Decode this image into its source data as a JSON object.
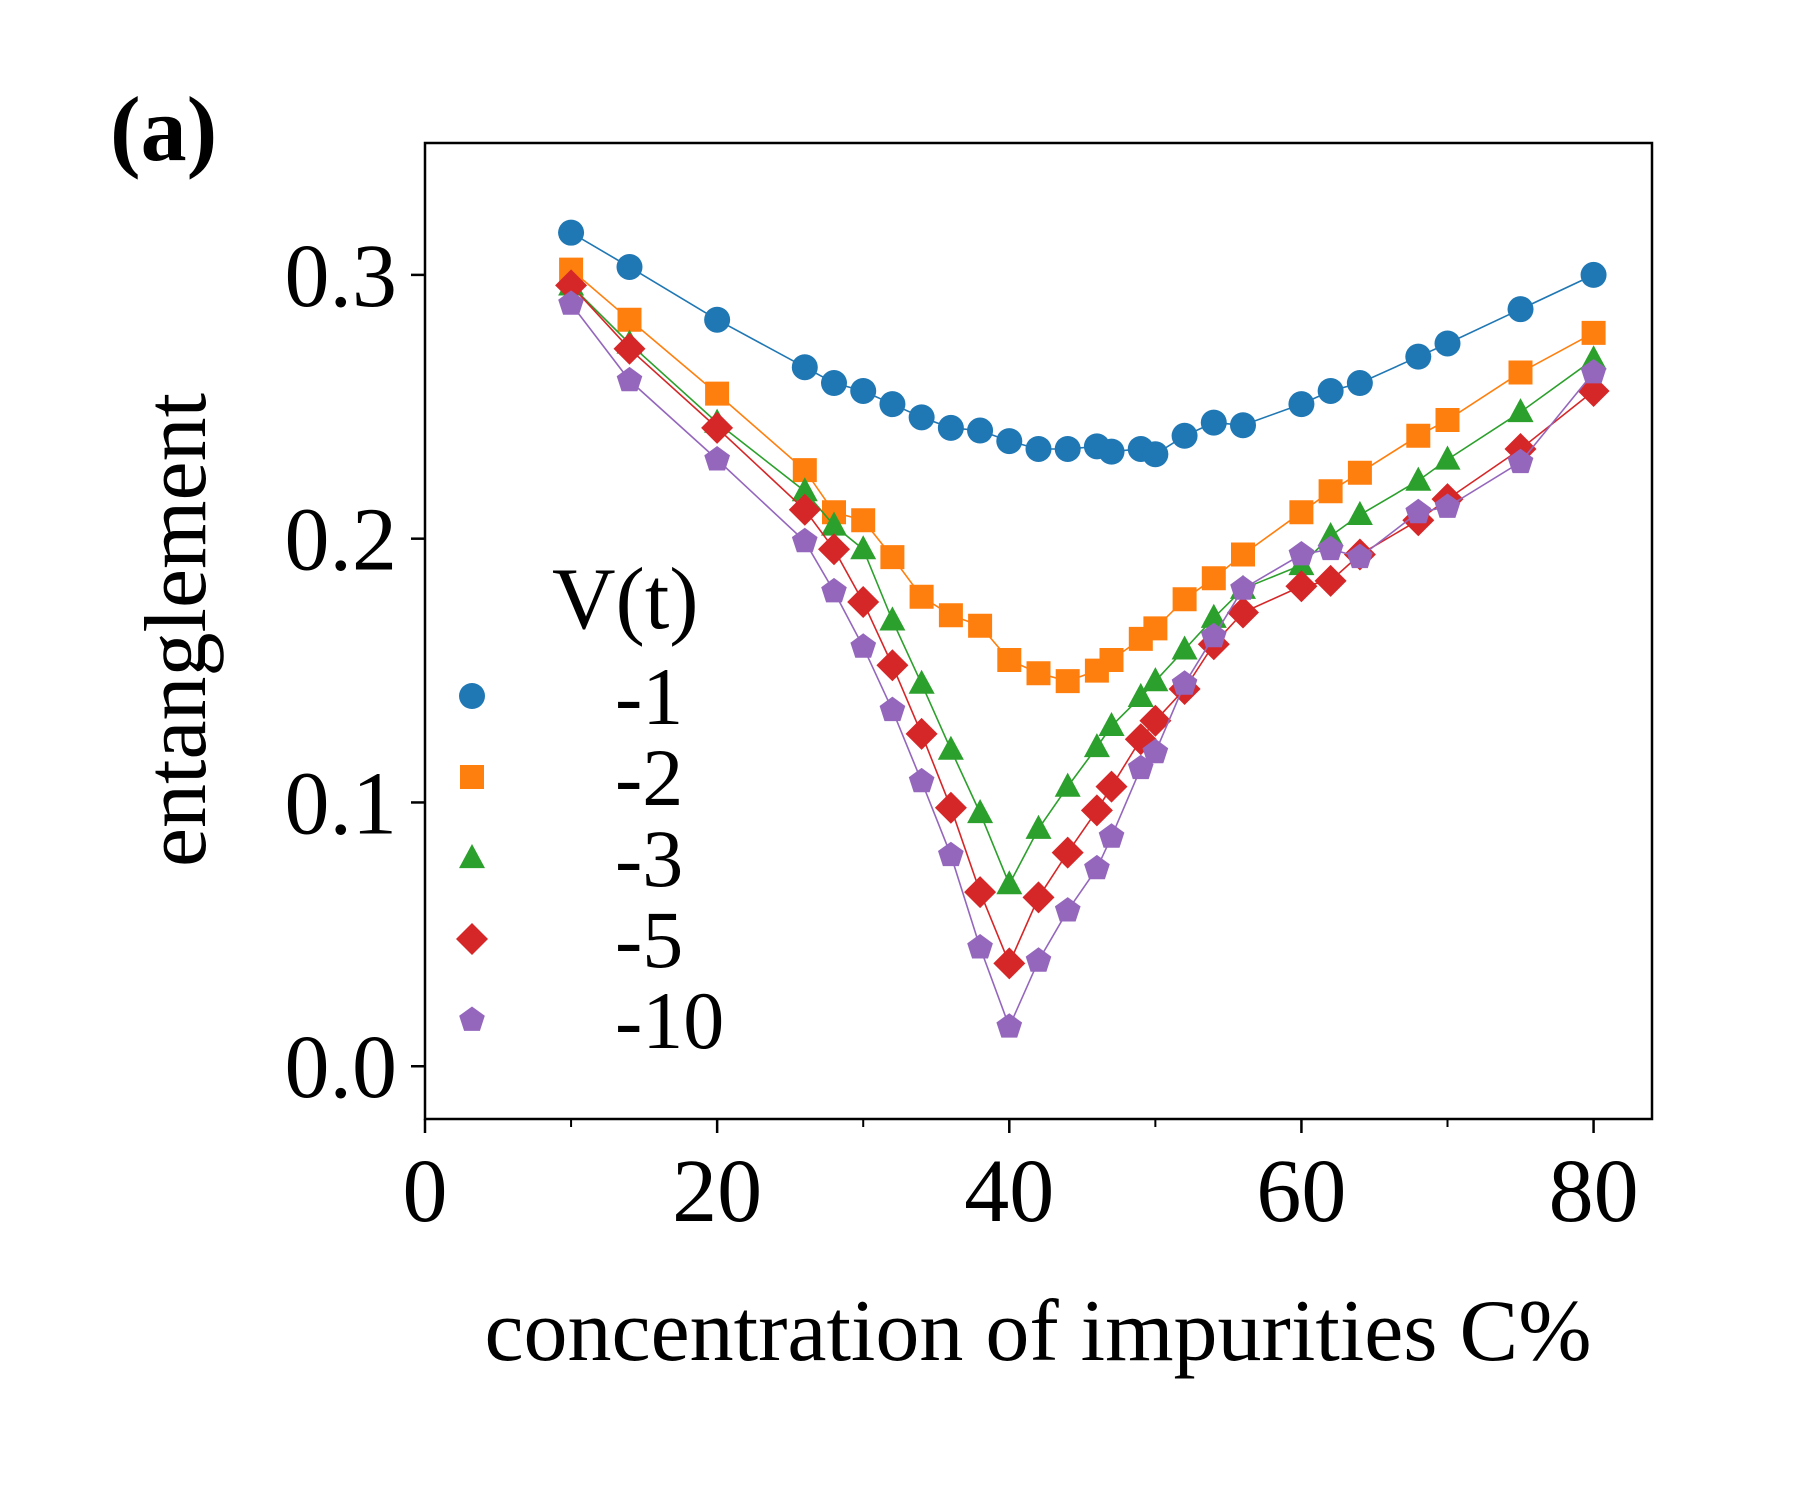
{
  "panel_label": "(a)",
  "chart_data": {
    "type": "line",
    "title": "",
    "xlabel": "concentration of impurities C%",
    "ylabel": "entanglement",
    "xlim": [
      0,
      84
    ],
    "ylim": [
      -0.02,
      0.35
    ],
    "xticks": [
      0,
      20,
      40,
      60,
      80
    ],
    "xtick_labels": [
      "0",
      "20",
      "40",
      "60",
      "80"
    ],
    "yticks": [
      0.0,
      0.1,
      0.2,
      0.3
    ],
    "ytick_labels": [
      "0.0",
      "0.1",
      "0.2",
      "0.3"
    ],
    "minor_xticks": [
      10,
      30,
      50,
      70
    ],
    "grid": false,
    "legend": {
      "title": "V(t)",
      "location": "lower-left"
    },
    "series": [
      {
        "name": "-1",
        "marker": "circle",
        "color": "#1f77b4",
        "x": [
          10,
          14,
          20,
          26,
          28,
          30,
          32,
          34,
          36,
          38,
          40,
          42,
          44,
          46,
          47,
          49,
          50,
          52,
          54,
          56,
          60,
          62,
          64,
          68,
          70,
          75,
          80
        ],
        "y": [
          0.316,
          0.303,
          0.283,
          0.265,
          0.259,
          0.256,
          0.251,
          0.246,
          0.242,
          0.241,
          0.237,
          0.234,
          0.234,
          0.235,
          0.233,
          0.234,
          0.232,
          0.239,
          0.244,
          0.243,
          0.251,
          0.256,
          0.259,
          0.269,
          0.274,
          0.287,
          0.3
        ]
      },
      {
        "name": "-2",
        "marker": "square",
        "color": "#ff7f0e",
        "x": [
          10,
          14,
          20,
          26,
          28,
          30,
          32,
          34,
          36,
          38,
          40,
          42,
          44,
          46,
          47,
          49,
          50,
          52,
          54,
          56,
          60,
          62,
          64,
          68,
          70,
          75,
          80
        ],
        "y": [
          0.302,
          0.283,
          0.255,
          0.226,
          0.21,
          0.207,
          0.193,
          0.178,
          0.171,
          0.167,
          0.154,
          0.149,
          0.146,
          0.15,
          0.154,
          0.162,
          0.166,
          0.177,
          0.185,
          0.194,
          0.21,
          0.218,
          0.225,
          0.239,
          0.245,
          0.263,
          0.278
        ]
      },
      {
        "name": "-3",
        "marker": "triangle",
        "color": "#2ca02c",
        "x": [
          10,
          14,
          20,
          26,
          28,
          30,
          32,
          34,
          36,
          38,
          40,
          42,
          44,
          46,
          47,
          49,
          50,
          52,
          54,
          56,
          60,
          62,
          64,
          68,
          70,
          75,
          80
        ],
        "y": [
          0.296,
          0.274,
          0.244,
          0.218,
          0.205,
          0.196,
          0.169,
          0.145,
          0.12,
          0.096,
          0.069,
          0.09,
          0.106,
          0.121,
          0.129,
          0.14,
          0.146,
          0.158,
          0.17,
          0.181,
          0.19,
          0.201,
          0.209,
          0.222,
          0.23,
          0.248,
          0.268
        ]
      },
      {
        "name": "-5",
        "marker": "diamond",
        "color": "#d62728",
        "x": [
          10,
          14,
          20,
          26,
          28,
          30,
          32,
          34,
          36,
          38,
          40,
          42,
          44,
          46,
          47,
          49,
          50,
          52,
          54,
          56,
          60,
          62,
          64,
          68,
          70,
          75,
          80
        ],
        "y": [
          0.296,
          0.272,
          0.242,
          0.211,
          0.196,
          0.176,
          0.152,
          0.126,
          0.098,
          0.066,
          0.039,
          0.064,
          0.081,
          0.097,
          0.106,
          0.124,
          0.131,
          0.143,
          0.16,
          0.172,
          0.182,
          0.184,
          0.194,
          0.207,
          0.215,
          0.234,
          0.256
        ]
      },
      {
        "name": "-10",
        "marker": "pentagon",
        "color": "#9467bd",
        "x": [
          10,
          14,
          20,
          26,
          28,
          30,
          32,
          34,
          36,
          38,
          40,
          42,
          44,
          46,
          47,
          49,
          50,
          52,
          54,
          56,
          60,
          62,
          64,
          68,
          70,
          75,
          80
        ],
        "y": [
          0.289,
          0.26,
          0.23,
          0.199,
          0.18,
          0.159,
          0.135,
          0.108,
          0.08,
          0.045,
          0.015,
          0.04,
          0.059,
          0.075,
          0.087,
          0.113,
          0.119,
          0.145,
          0.163,
          0.181,
          0.194,
          0.196,
          0.193,
          0.21,
          0.212,
          0.229,
          0.263
        ]
      }
    ]
  }
}
